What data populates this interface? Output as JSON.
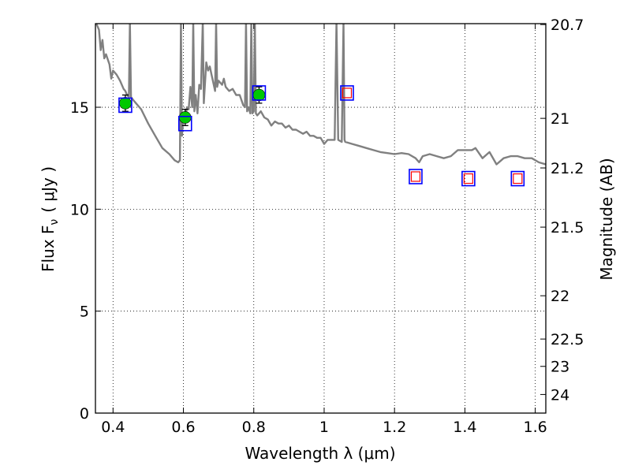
{
  "chart_data": {
    "type": "scatter",
    "xlabel": "Wavelength  λ (μm)",
    "ylabel": "Flux  F",
    "ylabel_sub": "ν",
    "ylabel_unit": "( μJy )",
    "y2label": "Magnitude (AB)",
    "xlim": [
      0.35,
      1.63
    ],
    "ylim": [
      0,
      19.1
    ],
    "grid": true,
    "x_ticks": [
      0.4,
      0.6,
      0.8,
      1.0,
      1.2,
      1.4,
      1.6
    ],
    "x_tick_labels": [
      "0.4",
      "0.6",
      "0.8",
      "1",
      "1.2",
      "1.4",
      "1.6"
    ],
    "y_ticks": [
      0,
      5,
      10,
      15
    ],
    "y_tick_labels": [
      "0",
      "5",
      "10",
      "15"
    ],
    "y2_ticks": [
      {
        "value": 20.7,
        "label": "20.7"
      },
      {
        "value": 21.0,
        "label": "21"
      },
      {
        "value": 21.2,
        "label": "21.2"
      },
      {
        "value": 21.5,
        "label": "21.5"
      },
      {
        "value": 22.0,
        "label": "22"
      },
      {
        "value": 22.5,
        "label": "22.5"
      },
      {
        "value": 23.0,
        "label": "23"
      },
      {
        "value": 24.0,
        "label": "24"
      }
    ],
    "series": [
      {
        "kind": "line",
        "color": "#808080",
        "points": [
          [
            0.35,
            19.2
          ],
          [
            0.36,
            18.8
          ],
          [
            0.365,
            17.8
          ],
          [
            0.37,
            18.3
          ],
          [
            0.375,
            17.4
          ],
          [
            0.38,
            17.6
          ],
          [
            0.39,
            17.1
          ],
          [
            0.395,
            16.4
          ],
          [
            0.4,
            16.8
          ],
          [
            0.41,
            16.6
          ],
          [
            0.42,
            16.3
          ],
          [
            0.43,
            15.9
          ],
          [
            0.435,
            15.8
          ],
          [
            0.44,
            15.6
          ],
          [
            0.445,
            15.5
          ],
          [
            0.448,
            19.2
          ],
          [
            0.451,
            15.5
          ],
          [
            0.46,
            15.3
          ],
          [
            0.48,
            14.9
          ],
          [
            0.5,
            14.2
          ],
          [
            0.52,
            13.6
          ],
          [
            0.54,
            13.0
          ],
          [
            0.56,
            12.7
          ],
          [
            0.575,
            12.4
          ],
          [
            0.585,
            12.3
          ],
          [
            0.59,
            12.4
          ],
          [
            0.593,
            19.2
          ],
          [
            0.596,
            13.6
          ],
          [
            0.6,
            14.6
          ],
          [
            0.605,
            14.3
          ],
          [
            0.61,
            15.0
          ],
          [
            0.615,
            14.9
          ],
          [
            0.62,
            16.0
          ],
          [
            0.625,
            15.0
          ],
          [
            0.628,
            19.2
          ],
          [
            0.631,
            14.8
          ],
          [
            0.635,
            15.6
          ],
          [
            0.64,
            14.7
          ],
          [
            0.645,
            16.1
          ],
          [
            0.65,
            15.9
          ],
          [
            0.655,
            19.2
          ],
          [
            0.658,
            15.2
          ],
          [
            0.665,
            17.2
          ],
          [
            0.67,
            16.8
          ],
          [
            0.675,
            17.0
          ],
          [
            0.68,
            16.6
          ],
          [
            0.69,
            15.8
          ],
          [
            0.693,
            19.2
          ],
          [
            0.696,
            16.0
          ],
          [
            0.7,
            16.3
          ],
          [
            0.71,
            16.1
          ],
          [
            0.715,
            16.4
          ],
          [
            0.72,
            16.0
          ],
          [
            0.73,
            15.8
          ],
          [
            0.74,
            15.9
          ],
          [
            0.75,
            15.6
          ],
          [
            0.76,
            15.6
          ],
          [
            0.77,
            15.1
          ],
          [
            0.775,
            15.0
          ],
          [
            0.778,
            19.2
          ],
          [
            0.781,
            14.8
          ],
          [
            0.785,
            15.0
          ],
          [
            0.79,
            14.7
          ],
          [
            0.793,
            19.2
          ],
          [
            0.796,
            14.7
          ],
          [
            0.8,
            14.8
          ],
          [
            0.803,
            19.2
          ],
          [
            0.806,
            14.7
          ],
          [
            0.81,
            14.6
          ],
          [
            0.82,
            14.8
          ],
          [
            0.83,
            14.5
          ],
          [
            0.84,
            14.4
          ],
          [
            0.85,
            14.1
          ],
          [
            0.86,
            14.3
          ],
          [
            0.87,
            14.2
          ],
          [
            0.88,
            14.2
          ],
          [
            0.89,
            14.0
          ],
          [
            0.9,
            14.1
          ],
          [
            0.91,
            13.9
          ],
          [
            0.92,
            13.9
          ],
          [
            0.93,
            13.8
          ],
          [
            0.94,
            13.7
          ],
          [
            0.95,
            13.8
          ],
          [
            0.96,
            13.6
          ],
          [
            0.97,
            13.6
          ],
          [
            0.98,
            13.5
          ],
          [
            0.99,
            13.5
          ],
          [
            1.0,
            13.2
          ],
          [
            1.01,
            13.4
          ],
          [
            1.02,
            13.4
          ],
          [
            1.03,
            13.4
          ],
          [
            1.035,
            19.2
          ],
          [
            1.04,
            13.4
          ],
          [
            1.05,
            13.3
          ],
          [
            1.055,
            19.2
          ],
          [
            1.058,
            13.4
          ],
          [
            1.06,
            13.3
          ],
          [
            1.08,
            13.2
          ],
          [
            1.1,
            13.1
          ],
          [
            1.12,
            13.0
          ],
          [
            1.14,
            12.9
          ],
          [
            1.16,
            12.8
          ],
          [
            1.18,
            12.75
          ],
          [
            1.2,
            12.7
          ],
          [
            1.22,
            12.75
          ],
          [
            1.24,
            12.7
          ],
          [
            1.26,
            12.5
          ],
          [
            1.27,
            12.3
          ],
          [
            1.28,
            12.6
          ],
          [
            1.3,
            12.7
          ],
          [
            1.32,
            12.6
          ],
          [
            1.34,
            12.5
          ],
          [
            1.36,
            12.6
          ],
          [
            1.38,
            12.9
          ],
          [
            1.4,
            12.9
          ],
          [
            1.42,
            12.9
          ],
          [
            1.43,
            13.0
          ],
          [
            1.45,
            12.5
          ],
          [
            1.47,
            12.8
          ],
          [
            1.49,
            12.2
          ],
          [
            1.51,
            12.5
          ],
          [
            1.53,
            12.6
          ],
          [
            1.55,
            12.6
          ],
          [
            1.57,
            12.5
          ],
          [
            1.59,
            12.5
          ],
          [
            1.61,
            12.3
          ],
          [
            1.63,
            12.2
          ]
        ]
      },
      {
        "kind": "errorbar",
        "color": "#00c800",
        "points": [
          {
            "x": 0.435,
            "y": 15.2,
            "err": 0.4
          },
          {
            "x": 0.605,
            "y": 14.5,
            "err": 0.4
          },
          {
            "x": 0.815,
            "y": 15.6,
            "err": 0.4
          }
        ]
      },
      {
        "kind": "blue-squares",
        "color": "#0000ff",
        "points": [
          {
            "x": 0.435,
            "y": 15.1
          },
          {
            "x": 0.605,
            "y": 14.2
          },
          {
            "x": 0.815,
            "y": 15.7
          },
          {
            "x": 1.065,
            "y": 15.7
          },
          {
            "x": 1.26,
            "y": 11.6
          },
          {
            "x": 1.41,
            "y": 11.5
          },
          {
            "x": 1.55,
            "y": 11.5
          }
        ]
      },
      {
        "kind": "red-squares",
        "color": "#ff0000",
        "points": [
          {
            "x": 1.065,
            "y": 15.7
          },
          {
            "x": 1.26,
            "y": 11.6
          },
          {
            "x": 1.41,
            "y": 11.5
          },
          {
            "x": 1.55,
            "y": 11.5
          }
        ]
      }
    ]
  }
}
